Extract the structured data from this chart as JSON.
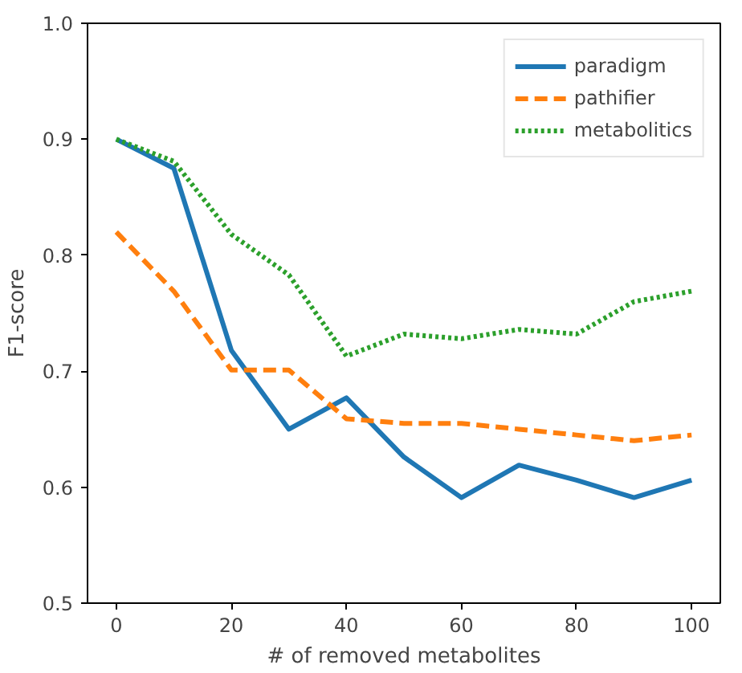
{
  "chart_data": {
    "type": "line",
    "xlabel": "# of removed metabolites",
    "ylabel": "F1-score",
    "x": [
      0,
      10,
      20,
      30,
      40,
      50,
      60,
      70,
      80,
      90,
      100
    ],
    "xlim": [
      -5,
      105
    ],
    "xticks": [
      0,
      20,
      40,
      60,
      80,
      100
    ],
    "ylim": [
      0.5,
      1.0
    ],
    "yticks": [
      {
        "value": 0.5,
        "label": "0.5"
      },
      {
        "value": 0.6,
        "label": "0.6"
      },
      {
        "value": 0.7,
        "label": "0.7"
      },
      {
        "value": 0.8,
        "label": "0.8"
      },
      {
        "value": 0.9,
        "label": "0.9"
      },
      {
        "value": 1.0,
        "label": "1.0"
      }
    ],
    "grid": false,
    "legend": "top right",
    "series": [
      {
        "name": "paradigm",
        "color": "#1f77b4",
        "line_style": "solid",
        "values": [
          0.9,
          0.875,
          0.718,
          0.65,
          0.677,
          0.626,
          0.591,
          0.619,
          0.606,
          0.591,
          0.606
        ]
      },
      {
        "name": "pathifier",
        "color": "#ff7f0e",
        "line_style": "dashed",
        "values": [
          0.82,
          0.769,
          0.701,
          0.701,
          0.659,
          0.655,
          0.655,
          0.65,
          0.645,
          0.64,
          0.645
        ]
      },
      {
        "name": "metabolitics",
        "color": "#2ca02c",
        "line_style": "dotted",
        "values": [
          0.9,
          0.881,
          0.818,
          0.783,
          0.713,
          0.732,
          0.728,
          0.736,
          0.732,
          0.76,
          0.769
        ]
      }
    ]
  }
}
